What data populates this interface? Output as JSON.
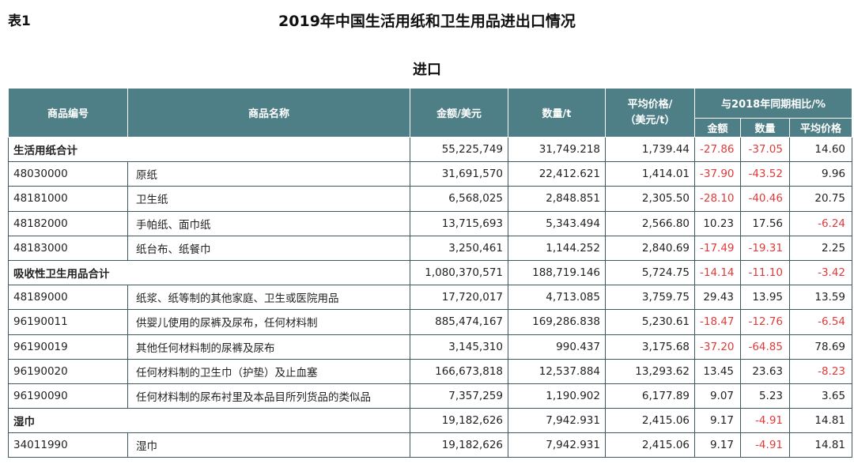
{
  "header": {
    "table_label": "表1",
    "title": "2019年中国生活用纸和卫生用品进出口情况",
    "section": "进口"
  },
  "columns": {
    "code": "商品编号",
    "name": "商品名称",
    "amount": "金额/美元",
    "quantity": "数量/t",
    "avg_price_line1": "平均价格/",
    "avg_price_line2": "（美元/t）",
    "yoy_group": "与2018年同期相比/%",
    "yoy_amount": "金额",
    "yoy_quantity": "数量",
    "yoy_price": "平均价格"
  },
  "rows": [
    {
      "type": "total",
      "name": "生活用纸合计",
      "amount": "55,225,749",
      "quantity": "31,749.218",
      "price": "1,739.44",
      "yoy_amount": "-27.86",
      "yoy_quantity": "-37.05",
      "yoy_price": "14.60"
    },
    {
      "type": "item",
      "code": "48030000",
      "name": "原纸",
      "amount": "31,691,570",
      "quantity": "22,412.621",
      "price": "1,414.01",
      "yoy_amount": "-37.90",
      "yoy_quantity": "-43.52",
      "yoy_price": "9.96"
    },
    {
      "type": "item",
      "code": "48181000",
      "name": "卫生纸",
      "amount": "6,568,025",
      "quantity": "2,848.851",
      "price": "2,305.50",
      "yoy_amount": "-28.10",
      "yoy_quantity": "-40.46",
      "yoy_price": "20.75"
    },
    {
      "type": "item",
      "code": "48182000",
      "name": "手帕纸、面巾纸",
      "amount": "13,715,693",
      "quantity": "5,343.494",
      "price": "2,566.80",
      "yoy_amount": "10.23",
      "yoy_quantity": "17.56",
      "yoy_price": "-6.24"
    },
    {
      "type": "item",
      "code": "48183000",
      "name": "纸台布、纸餐巾",
      "amount": "3,250,461",
      "quantity": "1,144.252",
      "price": "2,840.69",
      "yoy_amount": "-17.49",
      "yoy_quantity": "-19.31",
      "yoy_price": "2.25"
    },
    {
      "type": "total",
      "name": "吸收性卫生用品合计",
      "amount": "1,080,370,571",
      "quantity": "188,719.146",
      "price": "5,724.75",
      "yoy_amount": "-14.14",
      "yoy_quantity": "-11.10",
      "yoy_price": "-3.42"
    },
    {
      "type": "item",
      "code": "48189000",
      "name": "纸浆、纸等制的其他家庭、卫生或医院用品",
      "amount": "17,720,017",
      "quantity": "4,713.085",
      "price": "3,759.75",
      "yoy_amount": "29.43",
      "yoy_quantity": "13.95",
      "yoy_price": "13.59"
    },
    {
      "type": "item",
      "code": "96190011",
      "name": "供婴儿使用的尿裤及尿布，任何材料制",
      "amount": "885,474,167",
      "quantity": "169,286.838",
      "price": "5,230.61",
      "yoy_amount": "-18.47",
      "yoy_quantity": "-12.76",
      "yoy_price": "-6.54"
    },
    {
      "type": "item",
      "code": "96190019",
      "name": "其他任何材料制的尿裤及尿布",
      "amount": "3,145,310",
      "quantity": "990.437",
      "price": "3,175.68",
      "yoy_amount": "-37.20",
      "yoy_quantity": "-64.85",
      "yoy_price": "78.69"
    },
    {
      "type": "item",
      "code": "96190020",
      "name": "任何材料制的卫生巾（护垫）及止血塞",
      "amount": "166,673,818",
      "quantity": "12,537.884",
      "price": "13,293.62",
      "yoy_amount": "13.45",
      "yoy_quantity": "23.63",
      "yoy_price": "-8.23"
    },
    {
      "type": "item",
      "code": "96190090",
      "name": "任何材料制的尿布衬里及本品目所列货品的类似品",
      "amount": "7,357,259",
      "quantity": "1,190.902",
      "price": "6,177.89",
      "yoy_amount": "9.07",
      "yoy_quantity": "5.23",
      "yoy_price": "3.65"
    },
    {
      "type": "total",
      "name": "湿巾",
      "amount": "19,182,626",
      "quantity": "7,942.931",
      "price": "2,415.06",
      "yoy_amount": "9.17",
      "yoy_quantity": "-4.91",
      "yoy_price": "14.81"
    },
    {
      "type": "item",
      "code": "34011990",
      "name": "湿巾",
      "amount": "19,182,626",
      "quantity": "7,942.931",
      "price": "2,415.06",
      "yoy_amount": "9.17",
      "yoy_quantity": "-4.91",
      "yoy_price": "14.81"
    }
  ],
  "colors": {
    "header_bg": "#4f7f86",
    "negative": "#e03a3a"
  }
}
